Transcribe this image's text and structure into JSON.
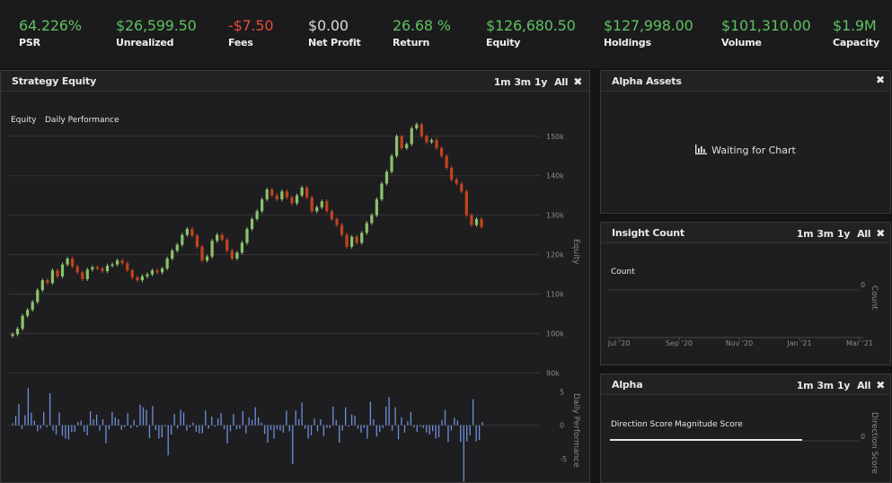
{
  "stats": [
    {
      "value": "64.226%",
      "label": "PSR",
      "color": "#5fc060"
    },
    {
      "value": "$26,599.50",
      "label": "Unrealized",
      "color": "#5fc060"
    },
    {
      "value": "-$7.50",
      "label": "Fees",
      "color": "#e64a3c"
    },
    {
      "value": "$0.00",
      "label": "Net Profit",
      "color": "#dadada"
    },
    {
      "value": "26.68 %",
      "label": "Return",
      "color": "#5fc060"
    },
    {
      "value": "$126,680.50",
      "label": "Equity",
      "color": "#5fc060"
    },
    {
      "value": "$127,998.00",
      "label": "Holdings",
      "color": "#5fc060"
    },
    {
      "value": "$101,310.00",
      "label": "Volume",
      "color": "#5fc060"
    },
    {
      "value": "$1.9M",
      "label": "Capacity",
      "color": "#5fc060"
    }
  ],
  "ranges": [
    "1m",
    "3m",
    "1y",
    "All"
  ],
  "close_glyph": "✖",
  "strategy_equity": {
    "title": "Strategy Equity",
    "legend": [
      "Equity",
      "Daily Performance"
    ]
  },
  "alpha_assets": {
    "title": "Alpha Assets",
    "waiting_text": "Waiting for Chart",
    "icon": "bar-chart-icon"
  },
  "insight_count": {
    "title": "Insight Count",
    "legend": "Count"
  },
  "alpha": {
    "title": "Alpha",
    "legend": [
      "Direction Score",
      "Magnitude Score"
    ]
  },
  "chart_data": [
    {
      "type": "candlestick",
      "title": "Strategy Equity",
      "ylabel": "Equity",
      "ylim": [
        86000,
        157000
      ],
      "yticks": [
        90000,
        100000,
        110000,
        120000,
        130000,
        140000,
        150000
      ],
      "ytick_labels": [
        "90k",
        "100k",
        "110k",
        "120k",
        "130k",
        "140k",
        "150k"
      ],
      "colors": {
        "up": "#8cc26a",
        "down": "#c1441f"
      },
      "series": [
        {
          "name": "Equity",
          "values": [
            99800,
            101200,
            104500,
            106000,
            108000,
            111000,
            113500,
            112800,
            116000,
            114500,
            117500,
            119000,
            117000,
            115500,
            113800,
            116200,
            116800,
            116500,
            115800,
            117200,
            117500,
            118500,
            117800,
            116000,
            114200,
            113500,
            114500,
            115000,
            116000,
            115500,
            116500,
            119000,
            121000,
            122500,
            125000,
            126500,
            124800,
            122000,
            118500,
            119500,
            123500,
            125000,
            123800,
            121000,
            119000,
            120500,
            123000,
            126500,
            129000,
            131000,
            134000,
            136500,
            135000,
            134000,
            136000,
            134500,
            133000,
            135000,
            137000,
            134500,
            131000,
            132000,
            133500,
            131000,
            129000,
            127500,
            125000,
            122000,
            124500,
            123000,
            125500,
            128000,
            130000,
            134000,
            138000,
            141000,
            145000,
            150000,
            147000,
            148000,
            152000,
            153000,
            150000,
            148500,
            149000,
            147000,
            145000,
            142000,
            139000,
            138000,
            136000,
            130000,
            127500,
            129000,
            127000
          ]
        }
      ]
    },
    {
      "type": "bar",
      "title": "Daily Performance",
      "ylabel": "Daily Performance",
      "ylim": [
        -8.5,
        6
      ],
      "yticks": [
        -5,
        0,
        5
      ],
      "ytick_labels": [
        "-5",
        "0",
        "5"
      ],
      "color": "#6e8fdc",
      "series": [
        {
          "name": "Daily Performance",
          "values": [
            0.3,
            1.4,
            3.2,
            -0.6,
            1.5,
            5.6,
            1.9,
            0.7,
            -0.9,
            -0.5,
            2.0,
            -0.3,
            4.8,
            -0.8,
            -1.4,
            1.9,
            -1.6,
            -2.0,
            -2.1,
            -1.0,
            -1.0,
            0.5,
            0.7,
            -1.0,
            -1.5,
            2.1,
            0.9,
            1.6,
            -0.8,
            0.9,
            -2.7,
            -0.6,
            2.0,
            1.2,
            0.9,
            -0.7,
            -0.3,
            1.8,
            -0.4,
            0.8,
            -0.3,
            3.1,
            2.7,
            2.3,
            -1.9,
            2.9,
            -0.7,
            -2.0,
            -1.8,
            -0.2,
            -4.5,
            -1.4,
            1.7,
            -0.5,
            2.3,
            1.9,
            -0.8,
            -0.3,
            0.4,
            -1.0,
            -1.2,
            -1.2,
            2.2,
            -0.5,
            1.3,
            -0.2,
            1.0,
            1.8,
            -0.6,
            -2.7,
            -0.9,
            1.7,
            -0.6,
            -0.5,
            2.1,
            -1.2,
            1.2,
            0.8,
            2.7,
            1.2,
            0.4,
            -1.3,
            -2.6,
            -0.7,
            -2.0,
            -0.6,
            -0.8,
            -1.1,
            2.2,
            -0.9,
            -5.8,
            2.2,
            0.9,
            3.4,
            -0.5,
            -2.0,
            -1.5,
            1.0,
            -0.9,
            0.9,
            -1.6,
            -0.4,
            -0.4,
            2.8,
            0.8,
            -2.6,
            -0.8,
            2.7,
            -0.2,
            1.6,
            1.4,
            -0.5,
            -1.1,
            -0.4,
            -2.0,
            3.5,
            0.9,
            -1.7,
            -1.0,
            -0.4,
            2.8,
            4.2,
            -0.8,
            2.7,
            -2.1,
            1.2,
            -1.1,
            0.6,
            2.0,
            -0.3,
            -1.0,
            -0.2,
            -0.4,
            -1.1,
            -1.4,
            -0.9,
            -2.0,
            -1.8,
            0.8,
            2.3,
            -2.5,
            -0.8,
            1.1,
            0.7,
            -2.5,
            -8.4,
            -2.4,
            -1.5,
            3.9,
            -2.4,
            -2.2,
            0.5
          ]
        }
      ]
    },
    {
      "type": "line",
      "title": "Insight Count",
      "ylabel": "Count",
      "yticks": [
        0
      ],
      "ytick_labels": [
        "0"
      ],
      "xtick_labels": [
        "Jul '20",
        "Sep '20",
        "Nov '20",
        "Jan '21",
        "Mar '21"
      ],
      "series": [
        {
          "name": "Count",
          "values": []
        }
      ]
    },
    {
      "type": "line",
      "title": "Alpha",
      "ylabel": "Direction Score",
      "yticks": [
        0
      ],
      "ytick_labels": [
        "0"
      ],
      "series": [
        {
          "name": "Direction Score",
          "values": []
        },
        {
          "name": "Magnitude Score",
          "values": []
        }
      ]
    }
  ]
}
